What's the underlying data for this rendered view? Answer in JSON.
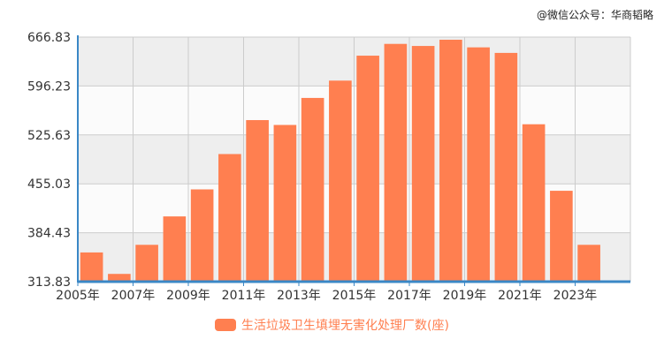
{
  "watermark": "@微信公众号：华商韬略",
  "colors": {
    "bar": "#ff7f50",
    "axis": "#3a87c6",
    "band_dark": "#eeeeee",
    "band_light": "#fbfbfb",
    "grid": "#cccccc",
    "text": "#333333"
  },
  "chart_data": {
    "type": "bar",
    "categories": [
      "2005年",
      "2006年",
      "2007年",
      "2008年",
      "2009年",
      "2010年",
      "2011年",
      "2012年",
      "2013年",
      "2014年",
      "2015年",
      "2016年",
      "2017年",
      "2018年",
      "2019年",
      "2020年",
      "2021年",
      "2022年",
      "2023年",
      "2024年"
    ],
    "x_tick_labels": [
      "2005年",
      "2007年",
      "2009年",
      "2011年",
      "2013年",
      "2015年",
      "2017年",
      "2019年",
      "2021年",
      "2023年"
    ],
    "y_tick_labels": [
      "313.83",
      "384.43",
      "455.03",
      "525.63",
      "596.23",
      "666.83"
    ],
    "series": [
      {
        "name": "生活垃圾卫生填埋无害化处理厂数(座)",
        "values": [
          356,
          325,
          367,
          408,
          447,
          498,
          547,
          540,
          579,
          604,
          640,
          657,
          654,
          663,
          652,
          644,
          541,
          445,
          367,
          null
        ]
      }
    ],
    "ylim": [
      313.83,
      666.83
    ],
    "grid": true,
    "legend_position": "bottom"
  }
}
